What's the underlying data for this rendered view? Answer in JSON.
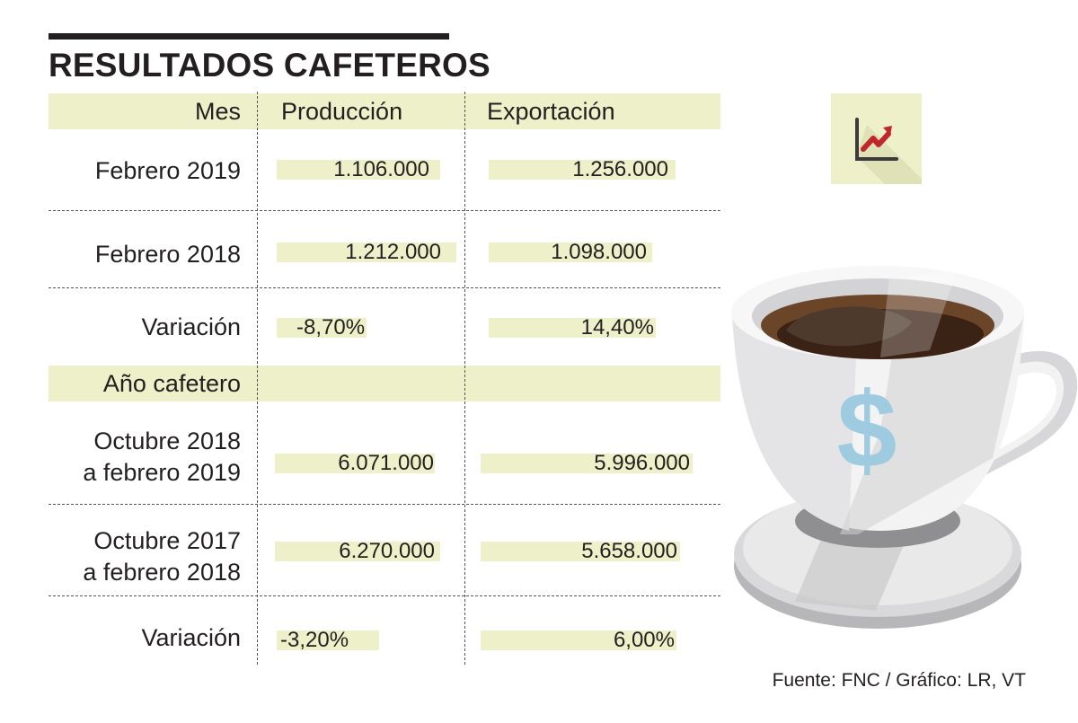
{
  "title": "RESULTADOS CAFETEROS",
  "header": {
    "mes": "Mes",
    "produccion": "Producción",
    "exportacion": "Exportación"
  },
  "section2_header": "Año cafetero",
  "rows": [
    {
      "label": "Febrero 2019",
      "produccion": "1.106.000",
      "exportacion": "1.256.000"
    },
    {
      "label": "Febrero 2018",
      "produccion": "1.212.000",
      "exportacion": "1.098.000"
    },
    {
      "label": "Variación",
      "produccion": "-8,70%",
      "exportacion": "14,40%"
    },
    {
      "label_line1": "Octubre 2018",
      "label_line2": "a febrero 2019",
      "produccion": "6.071.000",
      "exportacion": "5.996.000"
    },
    {
      "label_line1": "Octubre 2017",
      "label_line2": "a febrero 2018",
      "produccion": "6.270.000",
      "exportacion": "5.658.000"
    },
    {
      "label": "Variación",
      "produccion": "-3,20%",
      "exportacion": "6,00%"
    }
  ],
  "source": "Fuente: FNC / Gráfico: LR, VT",
  "icons": {
    "trend": "trend-chart-icon",
    "dollar": "dollar-icon",
    "cup": "coffee-cup-icon"
  },
  "colors": {
    "band": "#eef0c9",
    "text": "#231f20",
    "arrow": "#c0272d",
    "dollar": "#9fcbe1",
    "coffee": "#4a2b17"
  },
  "chart_data": {
    "type": "table",
    "title": "RESULTADOS CAFETEROS",
    "columns": [
      "Mes",
      "Producción",
      "Exportación"
    ],
    "rows": [
      [
        "Febrero 2019",
        "1.106.000",
        "1.256.000"
      ],
      [
        "Febrero 2018",
        "1.212.000",
        "1.098.000"
      ],
      [
        "Variación",
        "-8,70%",
        "14,40%"
      ],
      [
        "Año cafetero",
        "",
        ""
      ],
      [
        "Octubre 2018 a febrero 2019",
        "6.071.000",
        "5.996.000"
      ],
      [
        "Octubre 2017 a febrero 2018",
        "6.270.000",
        "5.658.000"
      ],
      [
        "Variación",
        "-3,20%",
        "6,00%"
      ]
    ],
    "series": [
      {
        "name": "Producción",
        "values": [
          1106000,
          1212000,
          -8.7,
          6071000,
          6270000,
          -3.2
        ]
      },
      {
        "name": "Exportación",
        "values": [
          1256000,
          1098000,
          14.4,
          5996000,
          5658000,
          6.0
        ]
      }
    ]
  }
}
